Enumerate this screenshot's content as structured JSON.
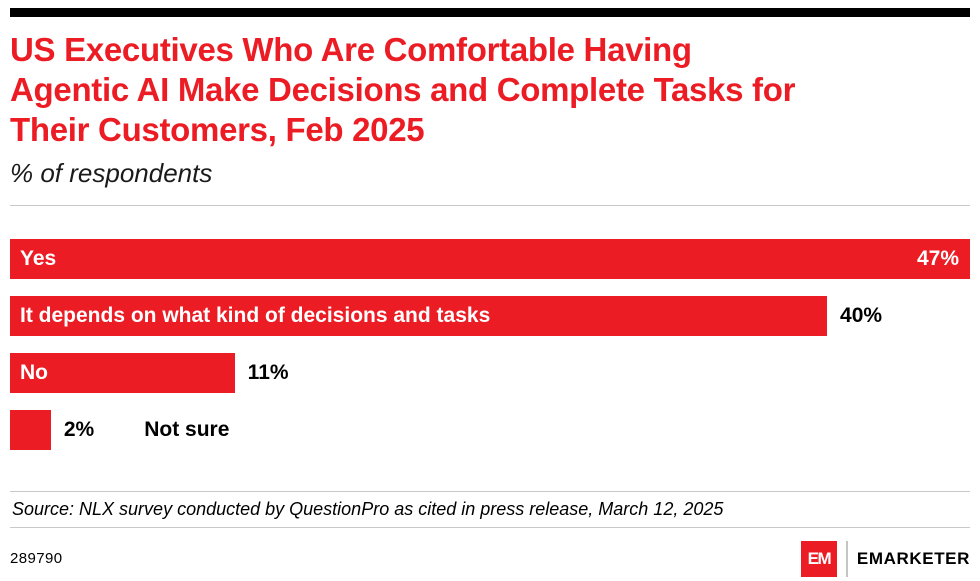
{
  "colors": {
    "accent": "#EC1C24",
    "bar": "#EC1C24",
    "topbar": "#000000",
    "divider": "#c9c9c9"
  },
  "header": {
    "title": "US Executives Who Are Comfortable Having Agentic AI Make Decisions and Complete Tasks for Their Customers, Feb 2025",
    "title_lines": [
      "US Executives Who Are Comfortable Having",
      "Agentic AI Make Decisions and Complete Tasks for",
      "Their Customers, Feb 2025"
    ],
    "subtitle": "% of respondents"
  },
  "chart_data": {
    "type": "bar",
    "orientation": "horizontal",
    "title": "US Executives Who Are Comfortable Having Agentic AI Make Decisions and Complete Tasks for Their Customers, Feb 2025",
    "subtitle": "% of respondents",
    "categories": [
      "Yes",
      "It depends on what kind of decisions and tasks",
      "No",
      "Not sure"
    ],
    "values": [
      47,
      40,
      11,
      2
    ],
    "value_labels": [
      "47%",
      "40%",
      "11%",
      "2%"
    ],
    "unit": "%",
    "xlim": [
      0,
      47
    ],
    "grid": false,
    "legend": "none",
    "bar_color": "#EC1C24"
  },
  "source": "Source: NLX survey conducted by QuestionPro as cited in press release, March 12, 2025",
  "footer": {
    "chart_id": "289790",
    "logo_text": "EM",
    "brand": "EMARKETER"
  }
}
